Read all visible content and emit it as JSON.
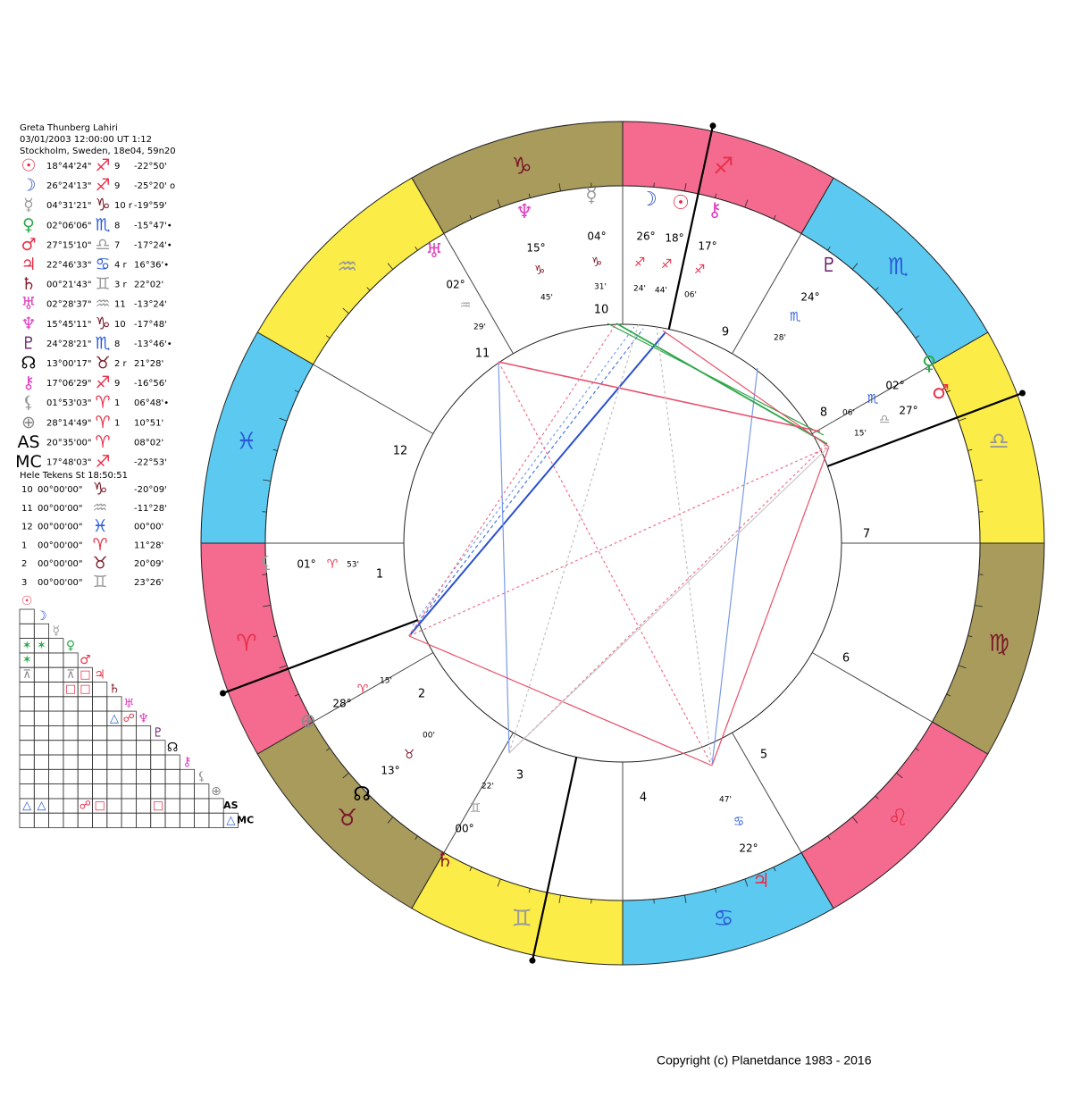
{
  "header": {
    "name": "Greta Thunberg Lahiri",
    "datetime": "03/01/2003 12:00:00 UT 1:12",
    "place": "Stockholm, Sweden, 18e04, 59n20"
  },
  "planets": [
    [
      "☉",
      "18°44'24\"",
      "♐",
      "9",
      "-22°50'"
    ],
    [
      "☽",
      "26°24'13\"",
      "♐",
      "9",
      "-25°20' o"
    ],
    [
      "☿",
      "04°31'21\"",
      "♑",
      "10 r",
      "-19°59'"
    ],
    [
      "♀",
      "02°06'06\"",
      "♏",
      "8",
      "-15°47'•"
    ],
    [
      "♂",
      "27°15'10\"",
      "♎",
      "7",
      "-17°24'•"
    ],
    [
      "♃",
      "22°46'33\"",
      "♋",
      "4 r",
      "16°36'•"
    ],
    [
      "♄",
      "00°21'43\"",
      "♊",
      "3 r",
      "22°02'"
    ],
    [
      "♅",
      "02°28'37\"",
      "♒",
      "11",
      "-13°24'"
    ],
    [
      "♆",
      "15°45'11\"",
      "♑",
      "10",
      "-17°48'"
    ],
    [
      "♇",
      "24°28'21\"",
      "♏",
      "8",
      "-13°46'•"
    ],
    [
      "☊",
      "13°00'17\"",
      "♉",
      "2 r",
      "21°28'"
    ],
    [
      "⚷",
      "17°06'29\"",
      "♐",
      "9",
      "-16°56'"
    ],
    [
      "⚸",
      "01°53'03\"",
      "♈",
      "1",
      "06°48'•"
    ],
    [
      "⊕",
      "28°14'49\"",
      "♈",
      "1",
      "10°51'"
    ],
    [
      "AS",
      "20°35'00\"",
      "♈",
      "",
      "08°02'"
    ],
    [
      "MC",
      "17°48'03\"",
      "♐",
      "",
      "-22°53'"
    ]
  ],
  "houses_title": "Hele Tekens St 18:50:51",
  "houses": [
    [
      "10",
      "00°00'00\"",
      "♑",
      "-20°09'"
    ],
    [
      "11",
      "00°00'00\"",
      "♒",
      "-11°28'"
    ],
    [
      "12",
      "00°00'00\"",
      "♓",
      "00°00'"
    ],
    [
      "1",
      "00°00'00\"",
      "♈",
      "11°28'"
    ],
    [
      "2",
      "00°00'00\"",
      "♉",
      "20°09'"
    ],
    [
      "3",
      "00°00'00\"",
      "♊",
      "23°26'"
    ]
  ],
  "aspect_grid": {
    "labels": [
      "☉",
      "☽",
      "☿",
      "♀",
      "♂",
      "♃",
      "♄",
      "♅",
      "♆",
      "♇",
      "☊",
      "⚷",
      "⚸",
      "⊕",
      "AS",
      "MC"
    ],
    "aspects": [
      "✶",
      "✶",
      "✶",
      "⊼",
      "⊼",
      "□",
      "□",
      "□",
      "△",
      "☍",
      "△",
      "△",
      "☍",
      "□",
      "□",
      "△"
    ]
  },
  "wheel": {
    "signs": [
      "♈",
      "♉",
      "♊",
      "♋",
      "♌",
      "♍",
      "♎",
      "♏",
      "♐",
      "♑",
      "♒",
      "♓"
    ],
    "house_numbers": [
      "1",
      "2",
      "3",
      "4",
      "5",
      "6",
      "7",
      "8",
      "9",
      "10",
      "11",
      "12"
    ],
    "placements": [
      [
        "⚸",
        "01°",
        "♈",
        "53'"
      ],
      [
        "⊕",
        "28°",
        "♈",
        "15'"
      ],
      [
        "☊",
        "13°",
        "♉",
        "00'"
      ],
      [
        "♄",
        "00°",
        "♊",
        "22'"
      ],
      [
        "♃",
        "22°",
        "♋",
        "47'"
      ],
      [
        "♂",
        "27°",
        "♎",
        "15'"
      ],
      [
        "♀",
        "02°",
        "♏",
        "06'"
      ],
      [
        "♇",
        "24°",
        "♏",
        "28'"
      ],
      [
        "⚷",
        "17°",
        "♐",
        "06'"
      ],
      [
        "☉",
        "18°",
        "♐",
        "44'"
      ],
      [
        "☽",
        "26°",
        "♐",
        "24'"
      ],
      [
        "☿",
        "04°",
        "♑",
        "31'"
      ],
      [
        "♆",
        "15°",
        "♑",
        "45'"
      ],
      [
        "♅",
        "02°",
        "♒",
        "29'"
      ]
    ]
  },
  "copyright": "Copyright (c) Planetdance 1983 - 2016"
}
